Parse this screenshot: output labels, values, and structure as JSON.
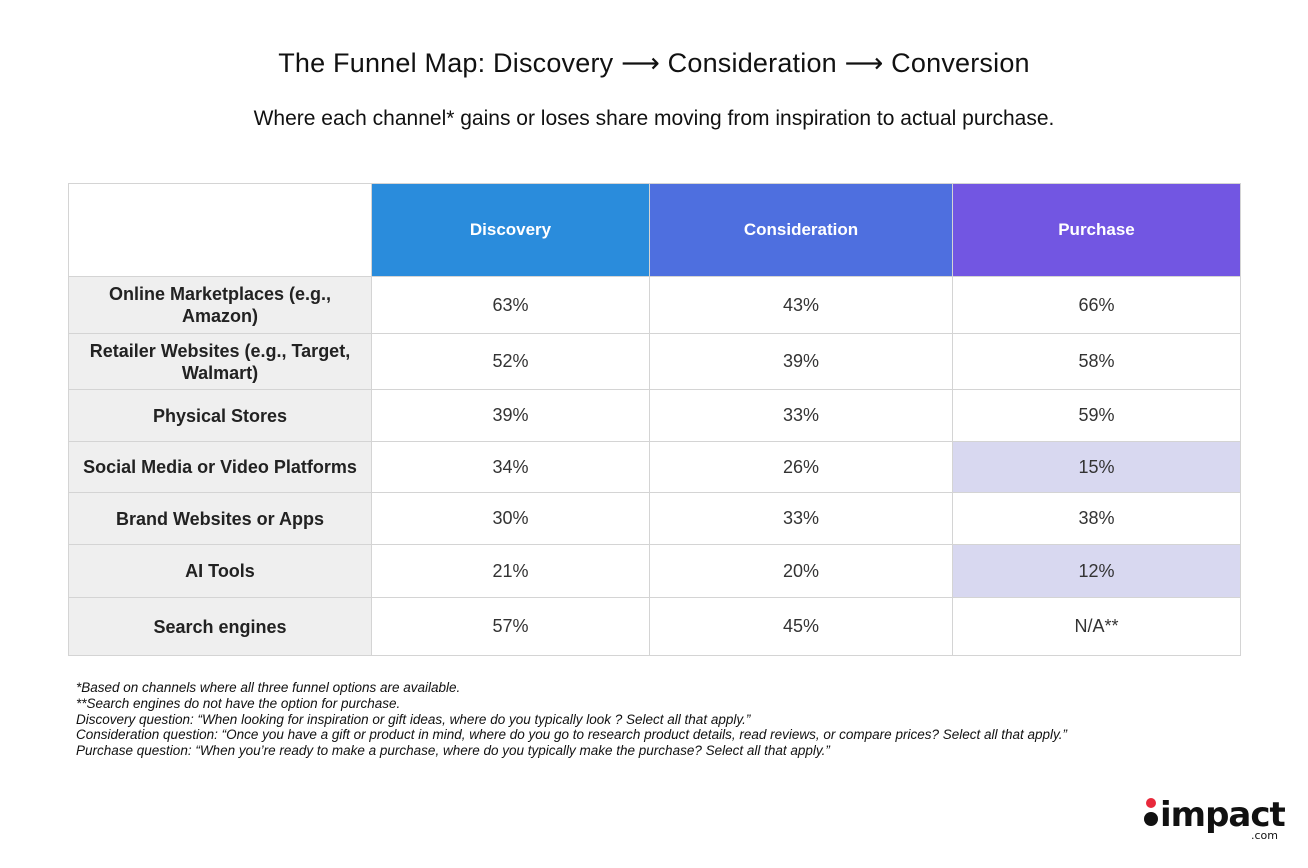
{
  "title": "The Funnel Map: Discovery ⟶ Consideration ⟶ Conversion",
  "subtitle": "Where each channel* gains or loses share moving from inspiration to actual purchase.",
  "colors": {
    "discovery_header": "#2a8cdc",
    "consideration_header": "#4e6fdf",
    "purchase_header": "#7256e2",
    "row_label_bg": "#efefef",
    "highlight_cell": "#d8d8f0"
  },
  "chart_data": {
    "type": "table",
    "columns": [
      "Discovery",
      "Consideration",
      "Purchase"
    ],
    "rows": [
      {
        "label": "Online Marketplaces (e.g., Amazon)",
        "values": [
          "63%",
          "43%",
          "66%"
        ],
        "highlight": [
          false,
          false,
          false
        ]
      },
      {
        "label": "Retailer Websites (e.g., Target, Walmart)",
        "values": [
          "52%",
          "39%",
          "58%"
        ],
        "highlight": [
          false,
          false,
          false
        ]
      },
      {
        "label": "Physical Stores",
        "values": [
          "39%",
          "33%",
          "59%"
        ],
        "highlight": [
          false,
          false,
          false
        ]
      },
      {
        "label": "Social Media or Video Platforms",
        "values": [
          "34%",
          "26%",
          "15%"
        ],
        "highlight": [
          false,
          false,
          true
        ]
      },
      {
        "label": "Brand Websites or Apps",
        "values": [
          "30%",
          "33%",
          "38%"
        ],
        "highlight": [
          false,
          false,
          false
        ]
      },
      {
        "label": "AI Tools",
        "values": [
          "21%",
          "20%",
          "12%"
        ],
        "highlight": [
          false,
          false,
          true
        ]
      },
      {
        "label": "Search engines",
        "values": [
          "57%",
          "45%",
          "N/A**"
        ],
        "highlight": [
          false,
          false,
          false
        ]
      }
    ]
  },
  "notes": [
    "*Based on channels where all three funnel options are available.",
    "**Search engines do not have the option for purchase.",
    "Discovery question:  “When looking for inspiration or gift ideas, where do you typically look ? Select all that apply.”",
    "Consideration question: “Once you have a gift or product in mind, where do you go to research product details, read reviews, or compare prices? Select all that apply.”",
    "Purchase question: “When you’re ready to make a purchase, where do you typically make the purchase? Select all that apply.”"
  ],
  "logo": {
    "word": "impact",
    "suffix": ".com"
  }
}
